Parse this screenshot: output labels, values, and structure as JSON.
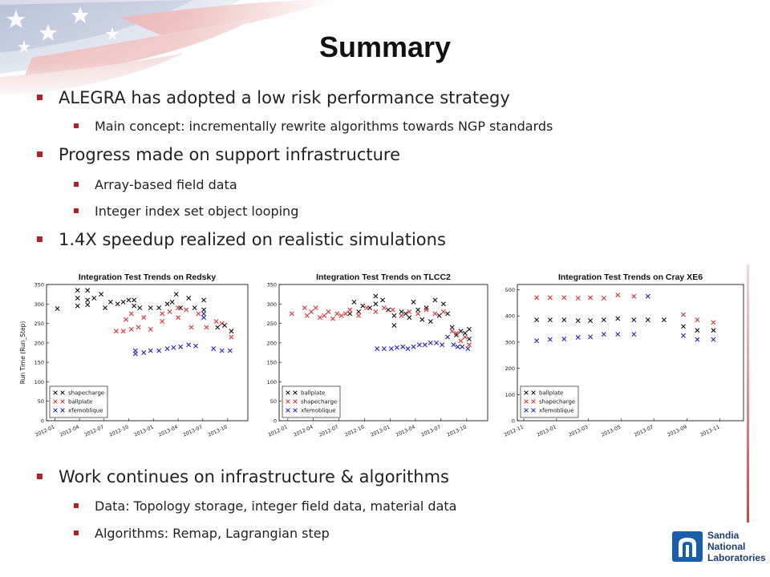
{
  "slide": {
    "title": "Summary",
    "bullets_top": [
      {
        "text": "ALEGRA has adopted a low risk performance strategy",
        "level": 1
      },
      {
        "text": "Main concept: incrementally rewrite algorithms towards NGP standards",
        "level": 2
      },
      {
        "text": "Progress made on support infrastructure",
        "level": 1
      },
      {
        "text": "Array-based field data",
        "level": 2
      },
      {
        "text": "Integer index set object looping",
        "level": 2
      },
      {
        "text": "1.4X speedup realized on realistic simulations",
        "level": 1
      }
    ],
    "bullets_bottom": [
      {
        "text": "Work continues on infrastructure & algorithms",
        "level": 1
      },
      {
        "text": "Data: Topology storage, integer field data, material data",
        "level": 2
      },
      {
        "text": "Algorithms: Remap, Lagrangian step",
        "level": 2
      }
    ],
    "logo": {
      "line1": "Sandia",
      "line2": "National",
      "line3": "Laboratories"
    }
  },
  "colors": {
    "black_series": "#111111",
    "red_series": "#e03030",
    "blue_series": "#2222cc",
    "bullet": "#b22222",
    "logo_blue": "#1a5da8"
  },
  "chart_data": [
    {
      "type": "scatter",
      "title": "Integration Test Trends on Redsky",
      "xlabel": "",
      "ylabel": "Run Time (Run_Step)",
      "x_type": "date",
      "xlim": [
        "2011-12-01",
        "2013-12-15"
      ],
      "ylim": [
        0,
        350
      ],
      "xticks": [
        "2012-01",
        "2012-04",
        "2012-07",
        "2012-10",
        "2013-01",
        "2013-04",
        "2013-07",
        "2013-10"
      ],
      "yticks": [
        0,
        50,
        100,
        150,
        200,
        250,
        300,
        350
      ],
      "legend_position": "bottom-left",
      "marker": "x",
      "series": [
        {
          "name": "shapecharge",
          "color": "#111111",
          "points": [
            [
              "2012-01-10",
              288
            ],
            [
              "2012-03-25",
              335
            ],
            [
              "2012-03-25",
              315
            ],
            [
              "2012-03-25",
              295
            ],
            [
              "2012-05-01",
              335
            ],
            [
              "2012-05-01",
              310
            ],
            [
              "2012-05-01",
              298
            ],
            [
              "2012-05-25",
              315
            ],
            [
              "2012-06-20",
              325
            ],
            [
              "2012-07-05",
              290
            ],
            [
              "2012-07-25",
              305
            ],
            [
              "2012-08-20",
              300
            ],
            [
              "2012-09-10",
              305
            ],
            [
              "2012-09-30",
              310
            ],
            [
              "2012-10-20",
              310
            ],
            [
              "2012-10-20",
              295
            ],
            [
              "2012-11-10",
              290
            ],
            [
              "2012-12-20",
              290
            ],
            [
              "2013-01-20",
              290
            ],
            [
              "2013-02-20",
              300
            ],
            [
              "2013-03-10",
              305
            ],
            [
              "2013-03-25",
              325
            ],
            [
              "2013-04-10",
              290
            ],
            [
              "2013-05-10",
              315
            ],
            [
              "2013-06-01",
              290
            ],
            [
              "2013-07-05",
              310
            ],
            [
              "2013-07-05",
              285
            ],
            [
              "2013-08-25",
              240
            ],
            [
              "2013-09-20",
              245
            ],
            [
              "2013-10-15",
              230
            ]
          ]
        },
        {
          "name": "ballplate",
          "color": "#e03030",
          "points": [
            [
              "2012-08-15",
              230
            ],
            [
              "2012-09-10",
              230
            ],
            [
              "2012-09-20",
              260
            ],
            [
              "2012-10-10",
              235
            ],
            [
              "2012-10-10",
              275
            ],
            [
              "2012-11-05",
              240
            ],
            [
              "2012-11-25",
              265
            ],
            [
              "2012-12-20",
              235
            ],
            [
              "2013-02-01",
              275
            ],
            [
              "2013-02-01",
              255
            ],
            [
              "2013-03-01",
              280
            ],
            [
              "2013-04-01",
              290
            ],
            [
              "2013-04-01",
              265
            ],
            [
              "2013-05-01",
              285
            ],
            [
              "2013-05-20",
              240
            ],
            [
              "2013-06-15",
              275
            ],
            [
              "2013-07-15",
              240
            ],
            [
              "2013-08-20",
              255
            ],
            [
              "2013-09-10",
              250
            ],
            [
              "2013-10-15",
              215
            ]
          ]
        },
        {
          "name": "xfemoblique",
          "color": "#2222cc",
          "points": [
            [
              "2012-10-25",
              180
            ],
            [
              "2012-10-25",
              172
            ],
            [
              "2012-11-25",
              175
            ],
            [
              "2012-12-20",
              180
            ],
            [
              "2013-01-20",
              180
            ],
            [
              "2013-02-20",
              185
            ],
            [
              "2013-03-15",
              188
            ],
            [
              "2013-04-10",
              190
            ],
            [
              "2013-05-10",
              195
            ],
            [
              "2013-06-05",
              192
            ],
            [
              "2013-07-05",
              275
            ],
            [
              "2013-07-05",
              265
            ],
            [
              "2013-08-10",
              185
            ],
            [
              "2013-09-10",
              180
            ],
            [
              "2013-10-10",
              180
            ]
          ]
        }
      ]
    },
    {
      "type": "scatter",
      "title": "Integration Test Trends on TLCC2",
      "xlabel": "",
      "ylabel": "",
      "x_type": "date",
      "xlim": [
        "2011-12-01",
        "2013-12-15"
      ],
      "ylim": [
        0,
        350
      ],
      "xticks": [
        "2012-01",
        "2012-04",
        "2012-07",
        "2012-10",
        "2013-01",
        "2013-04",
        "2013-07",
        "2013-10"
      ],
      "yticks": [
        0,
        50,
        100,
        150,
        200,
        250,
        300,
        350
      ],
      "legend_position": "bottom-left",
      "marker": "x",
      "series": [
        {
          "name": "ballplate",
          "color": "#111111",
          "points": [
            [
              "2012-08-10",
              275
            ],
            [
              "2012-08-25",
              305
            ],
            [
              "2012-09-10",
              280
            ],
            [
              "2012-09-25",
              295
            ],
            [
              "2012-10-20",
              290
            ],
            [
              "2012-11-10",
              320
            ],
            [
              "2012-11-10",
              300
            ],
            [
              "2012-12-05",
              310
            ],
            [
              "2012-12-25",
              285
            ],
            [
              "2013-01-15",
              245
            ],
            [
              "2013-01-15",
              270
            ],
            [
              "2013-02-10",
              280
            ],
            [
              "2013-02-25",
              275
            ],
            [
              "2013-03-10",
              265
            ],
            [
              "2013-03-25",
              305
            ],
            [
              "2013-04-10",
              285
            ],
            [
              "2013-04-25",
              260
            ],
            [
              "2013-05-10",
              290
            ],
            [
              "2013-05-25",
              255
            ],
            [
              "2013-06-10",
              310
            ],
            [
              "2013-06-25",
              270
            ],
            [
              "2013-07-10",
              300
            ],
            [
              "2013-07-25",
              275
            ],
            [
              "2013-08-10",
              240
            ],
            [
              "2013-08-25",
              220
            ],
            [
              "2013-09-10",
              230
            ],
            [
              "2013-09-25",
              225
            ],
            [
              "2013-10-10",
              235
            ],
            [
              "2013-10-10",
              210
            ]
          ]
        },
        {
          "name": "shapecharge",
          "color": "#e03030",
          "points": [
            [
              "2012-01-15",
              275
            ],
            [
              "2012-03-01",
              290
            ],
            [
              "2012-03-10",
              270
            ],
            [
              "2012-03-25",
              280
            ],
            [
              "2012-04-10",
              290
            ],
            [
              "2012-04-25",
              265
            ],
            [
              "2012-05-10",
              270
            ],
            [
              "2012-05-25",
              280
            ],
            [
              "2012-06-10",
              262
            ],
            [
              "2012-06-25",
              275
            ],
            [
              "2012-07-10",
              270
            ],
            [
              "2012-07-25",
              275
            ],
            [
              "2012-08-10",
              285
            ],
            [
              "2012-09-10",
              270
            ],
            [
              "2012-10-10",
              290
            ],
            [
              "2012-11-10",
              280
            ],
            [
              "2012-12-10",
              290
            ],
            [
              "2013-01-10",
              285
            ],
            [
              "2013-02-10",
              270
            ],
            [
              "2013-03-10",
              280
            ],
            [
              "2013-04-10",
              275
            ],
            [
              "2013-05-10",
              285
            ],
            [
              "2013-06-10",
              275
            ],
            [
              "2013-07-10",
              280
            ],
            [
              "2013-08-10",
              230
            ],
            [
              "2013-08-25",
              225
            ],
            [
              "2013-09-10",
              205
            ],
            [
              "2013-09-25",
              215
            ],
            [
              "2013-10-10",
              195
            ]
          ]
        },
        {
          "name": "xfemoblique",
          "color": "#2222cc",
          "points": [
            [
              "2012-11-15",
              185
            ],
            [
              "2012-12-10",
              185
            ],
            [
              "2013-01-05",
              185
            ],
            [
              "2013-01-25",
              188
            ],
            [
              "2013-02-15",
              190
            ],
            [
              "2013-03-05",
              185
            ],
            [
              "2013-03-25",
              190
            ],
            [
              "2013-04-15",
              195
            ],
            [
              "2013-05-05",
              195
            ],
            [
              "2013-05-25",
              200
            ],
            [
              "2013-06-15",
              200
            ],
            [
              "2013-07-05",
              195
            ],
            [
              "2013-07-25",
              215
            ],
            [
              "2013-08-15",
              195
            ],
            [
              "2013-08-30",
              190
            ],
            [
              "2013-09-15",
              190
            ],
            [
              "2013-10-05",
              185
            ]
          ]
        }
      ]
    },
    {
      "type": "scatter",
      "title": "Integration Test Trends on Cray XE6",
      "xlabel": "",
      "ylabel": "",
      "x_type": "date",
      "xlim": [
        "2012-10-20",
        "2013-12-15"
      ],
      "ylim": [
        0,
        520
      ],
      "xticks": [
        "2012-11",
        "2013-01",
        "2013-03",
        "2013-05",
        "2013-07",
        "2013-09",
        "2013-11"
      ],
      "yticks": [
        0,
        100,
        200,
        300,
        400,
        500
      ],
      "legend_position": "bottom-left",
      "marker": "x",
      "series": [
        {
          "name": "ballplate",
          "color": "#111111",
          "points": [
            [
              "2012-11-25",
              385
            ],
            [
              "2012-12-20",
              385
            ],
            [
              "2013-01-15",
              385
            ],
            [
              "2013-02-10",
              382
            ],
            [
              "2013-03-05",
              382
            ],
            [
              "2013-03-30",
              385
            ],
            [
              "2013-04-25",
              390
            ],
            [
              "2013-05-25",
              385
            ],
            [
              "2013-06-20",
              385
            ],
            [
              "2013-07-20",
              385
            ],
            [
              "2013-08-25",
              360
            ],
            [
              "2013-09-20",
              345
            ],
            [
              "2013-10-20",
              345
            ]
          ]
        },
        {
          "name": "shapecharge",
          "color": "#e03030",
          "points": [
            [
              "2012-11-25",
              470
            ],
            [
              "2012-12-20",
              470
            ],
            [
              "2013-01-15",
              470
            ],
            [
              "2013-02-10",
              468
            ],
            [
              "2013-03-05",
              470
            ],
            [
              "2013-03-30",
              468
            ],
            [
              "2013-04-25",
              480
            ],
            [
              "2013-05-25",
              475
            ],
            [
              "2013-08-25",
              405
            ],
            [
              "2013-09-20",
              385
            ],
            [
              "2013-10-20",
              375
            ]
          ]
        },
        {
          "name": "xfemoblique",
          "color": "#2222cc",
          "points": [
            [
              "2012-11-25",
              305
            ],
            [
              "2012-12-20",
              310
            ],
            [
              "2013-01-15",
              312
            ],
            [
              "2013-02-10",
              318
            ],
            [
              "2013-03-05",
              320
            ],
            [
              "2013-03-30",
              330
            ],
            [
              "2013-04-25",
              330
            ],
            [
              "2013-05-25",
              330
            ],
            [
              "2013-06-20",
              475
            ],
            [
              "2013-08-25",
              325
            ],
            [
              "2013-09-20",
              310
            ],
            [
              "2013-10-20",
              310
            ]
          ]
        }
      ]
    }
  ]
}
